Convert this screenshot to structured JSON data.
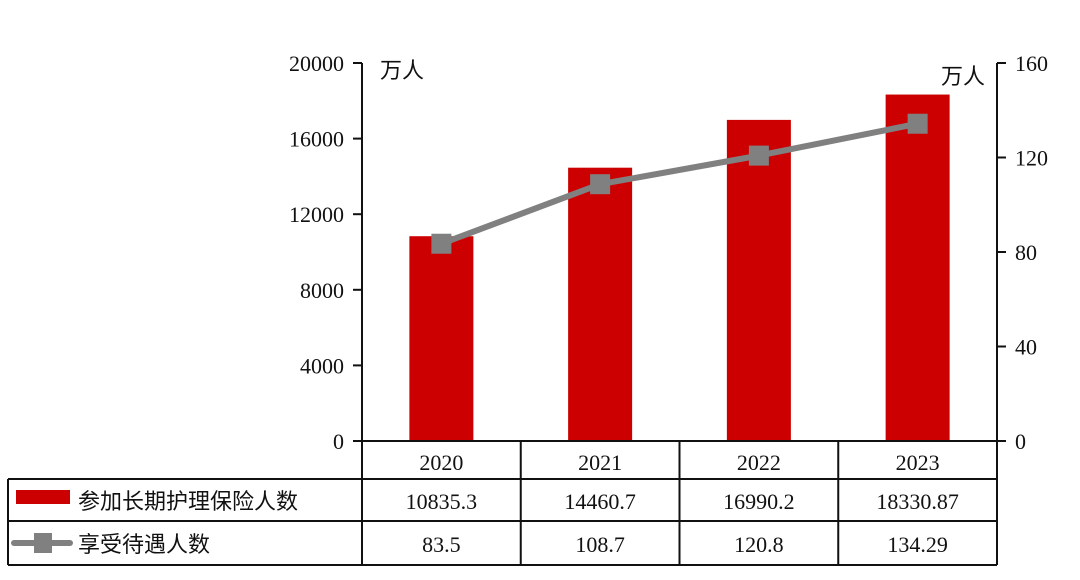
{
  "chart_data": {
    "type": "bar",
    "categories": [
      "2020",
      "2021",
      "2022",
      "2023"
    ],
    "series": [
      {
        "name": "参加长期护理保险人数",
        "type": "bar",
        "axis": "left",
        "values": [
          10835.3,
          14460.7,
          16990.2,
          18330.87
        ],
        "labels": [
          "10835.3",
          "14460.7",
          "16990.2",
          "18330.87"
        ],
        "color": "#cc0000"
      },
      {
        "name": "享受待遇人数",
        "type": "line",
        "axis": "right",
        "values": [
          83.5,
          108.7,
          120.8,
          134.29
        ],
        "labels": [
          "83.5",
          "108.7",
          "120.8",
          "134.29"
        ],
        "color": "#808080"
      }
    ],
    "left_axis": {
      "unit": "万人",
      "ylim": [
        0,
        20000
      ],
      "ticks": [
        "0",
        "4000",
        "8000",
        "12000",
        "16000",
        "20000"
      ]
    },
    "right_axis": {
      "unit": "万人",
      "ylim": [
        0,
        160
      ],
      "ticks": [
        "0",
        "40",
        "80",
        "120",
        "160"
      ]
    },
    "grid": false,
    "legend": "data-table-bottom"
  }
}
